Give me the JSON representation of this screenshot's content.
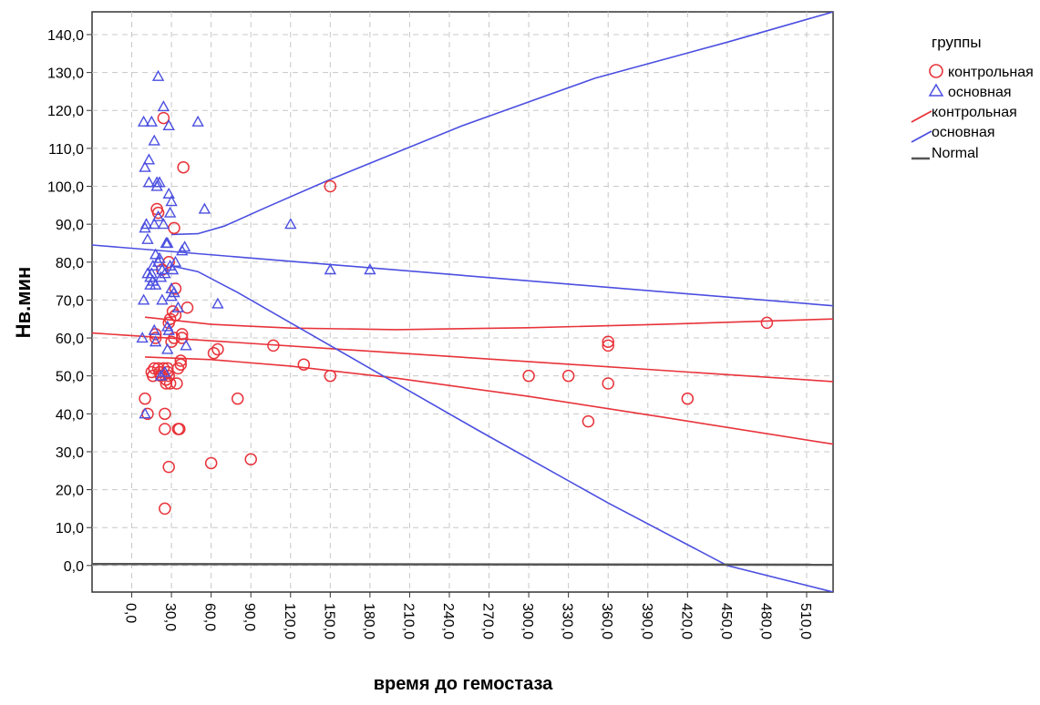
{
  "chart_data": {
    "type": "scatter",
    "xlabel": "время до гемостаза",
    "ylabel": "Нв.мин",
    "xlim": [
      -30,
      530
    ],
    "ylim": [
      -7,
      146
    ],
    "x_ticks": [
      0,
      30,
      60,
      90,
      120,
      150,
      180,
      210,
      240,
      270,
      300,
      330,
      360,
      390,
      420,
      450,
      480,
      510
    ],
    "x_tick_labels": [
      "0,0",
      "30,0",
      "60,0",
      "90,0",
      "120,0",
      "150,0",
      "180,0",
      "210,0",
      "240,0",
      "270,0",
      "300,0",
      "330,0",
      "360,0",
      "390,0",
      "420,0",
      "450,0",
      "480,0",
      "510,0"
    ],
    "y_ticks": [
      0,
      10,
      20,
      30,
      40,
      50,
      60,
      70,
      80,
      90,
      100,
      110,
      120,
      130,
      140
    ],
    "y_tick_labels": [
      "0,0",
      "10,0",
      "20,0",
      "30,0",
      "40,0",
      "50,0",
      "60,0",
      "70,0",
      "80,0",
      "90,0",
      "100,0",
      "110,0",
      "120,0",
      "130,0",
      "140,0"
    ],
    "grid": true,
    "legend_position": "right",
    "legend": {
      "title": "группы",
      "items": [
        {
          "label": "контрольная",
          "kind": "circle",
          "color": "#e8333a"
        },
        {
          "label": "основная",
          "kind": "triangle",
          "color": "#4b4fe0"
        },
        {
          "label": "контрольная",
          "kind": "line",
          "color": "#e8333a"
        },
        {
          "label": "основная",
          "kind": "line",
          "color": "#4b4fe0"
        },
        {
          "label": "Normal",
          "kind": "line",
          "color": "#555555"
        }
      ]
    },
    "colors": {
      "control": "#e8333a",
      "main": "#4b4fe0",
      "normal": "#555555"
    },
    "series": [
      {
        "name": "контрольная",
        "marker": "circle",
        "points": [
          [
            10,
            44
          ],
          [
            12,
            40
          ],
          [
            15,
            51
          ],
          [
            16,
            50
          ],
          [
            17,
            52
          ],
          [
            18,
            61
          ],
          [
            18,
            60
          ],
          [
            19,
            94
          ],
          [
            20,
            93
          ],
          [
            20,
            52
          ],
          [
            21,
            51
          ],
          [
            22,
            50
          ],
          [
            23,
            78
          ],
          [
            24,
            118
          ],
          [
            24,
            52
          ],
          [
            25,
            36
          ],
          [
            25,
            40
          ],
          [
            25,
            15
          ],
          [
            26,
            49
          ],
          [
            26,
            48
          ],
          [
            27,
            51
          ],
          [
            27,
            52
          ],
          [
            28,
            50
          ],
          [
            28,
            64
          ],
          [
            28,
            26
          ],
          [
            28,
            80
          ],
          [
            29,
            48
          ],
          [
            29,
            65
          ],
          [
            30,
            59
          ],
          [
            31,
            67
          ],
          [
            32,
            60
          ],
          [
            32,
            89
          ],
          [
            33,
            66
          ],
          [
            33,
            73
          ],
          [
            34,
            48
          ],
          [
            35,
            36
          ],
          [
            35,
            52
          ],
          [
            36,
            36
          ],
          [
            37,
            53
          ],
          [
            37,
            54
          ],
          [
            38,
            60
          ],
          [
            38,
            61
          ],
          [
            39,
            105
          ],
          [
            42,
            68
          ],
          [
            60,
            27
          ],
          [
            62,
            56
          ],
          [
            65,
            57
          ],
          [
            80,
            44
          ],
          [
            90,
            28
          ],
          [
            107,
            58
          ],
          [
            130,
            53
          ],
          [
            150,
            100
          ],
          [
            150,
            50
          ],
          [
            300,
            50
          ],
          [
            330,
            50
          ],
          [
            345,
            38
          ],
          [
            360,
            59
          ],
          [
            360,
            58
          ],
          [
            360,
            48
          ],
          [
            420,
            44
          ],
          [
            480,
            64
          ]
        ]
      },
      {
        "name": "основная",
        "marker": "triangle",
        "points": [
          [
            8,
            60
          ],
          [
            9,
            70
          ],
          [
            9,
            117
          ],
          [
            10,
            89
          ],
          [
            10,
            105
          ],
          [
            10,
            40
          ],
          [
            11,
            90
          ],
          [
            12,
            86
          ],
          [
            12,
            77
          ],
          [
            13,
            107
          ],
          [
            13,
            101
          ],
          [
            14,
            74
          ],
          [
            14,
            76
          ],
          [
            15,
            117
          ],
          [
            15,
            77
          ],
          [
            16,
            75
          ],
          [
            16,
            79
          ],
          [
            17,
            62
          ],
          [
            17,
            112
          ],
          [
            17,
            90
          ],
          [
            18,
            59
          ],
          [
            18,
            74
          ],
          [
            18,
            82
          ],
          [
            19,
            101
          ],
          [
            19,
            100
          ],
          [
            20,
            129
          ],
          [
            20,
            92
          ],
          [
            20,
            80
          ],
          [
            21,
            81
          ],
          [
            21,
            101
          ],
          [
            22,
            76
          ],
          [
            22,
            50
          ],
          [
            23,
            78
          ],
          [
            23,
            70
          ],
          [
            24,
            121
          ],
          [
            24,
            90
          ],
          [
            25,
            77
          ],
          [
            25,
            51
          ],
          [
            26,
            85
          ],
          [
            27,
            85
          ],
          [
            27,
            63
          ],
          [
            27,
            57
          ],
          [
            28,
            98
          ],
          [
            28,
            116
          ],
          [
            28,
            62
          ],
          [
            29,
            93
          ],
          [
            29,
            79
          ],
          [
            30,
            73
          ],
          [
            30,
            96
          ],
          [
            30,
            71
          ],
          [
            31,
            78
          ],
          [
            32,
            72
          ],
          [
            33,
            80
          ],
          [
            35,
            68
          ],
          [
            38,
            83
          ],
          [
            40,
            84
          ],
          [
            41,
            58
          ],
          [
            50,
            117
          ],
          [
            55,
            94
          ],
          [
            65,
            69
          ],
          [
            120,
            90
          ],
          [
            150,
            78
          ],
          [
            180,
            78
          ]
        ]
      }
    ],
    "fits": [
      {
        "name": "контрольная",
        "kind": "fit",
        "points": [
          [
            -30,
            61.3
          ],
          [
            530,
            48.5
          ]
        ]
      },
      {
        "name": "контрольная",
        "kind": "ci_upper",
        "points": [
          [
            10,
            65.5
          ],
          [
            60,
            63.6
          ],
          [
            120,
            62.6
          ],
          [
            200,
            62.2
          ],
          [
            300,
            62.7
          ],
          [
            400,
            63.6
          ],
          [
            530,
            65
          ]
        ]
      },
      {
        "name": "контрольная",
        "kind": "ci_lower",
        "points": [
          [
            10,
            55
          ],
          [
            60,
            54.3
          ],
          [
            120,
            52.6
          ],
          [
            200,
            49.4
          ],
          [
            300,
            44.6
          ],
          [
            400,
            39.2
          ],
          [
            530,
            32
          ]
        ]
      },
      {
        "name": "основная",
        "kind": "fit",
        "points": [
          [
            -30,
            84.5
          ],
          [
            530,
            68.5
          ]
        ]
      },
      {
        "name": "основная",
        "kind": "ci_upper",
        "points": [
          [
            30,
            87.3
          ],
          [
            50,
            87.5
          ],
          [
            70,
            89.5
          ],
          [
            100,
            94.2
          ],
          [
            150,
            101.8
          ],
          [
            250,
            116
          ],
          [
            350,
            128.5
          ],
          [
            450,
            138
          ],
          [
            530,
            146
          ]
        ]
      },
      {
        "name": "основная",
        "kind": "ci_lower",
        "points": [
          [
            30,
            79
          ],
          [
            50,
            77.5
          ],
          [
            80,
            72
          ],
          [
            120,
            64
          ],
          [
            180,
            52
          ],
          [
            260,
            36
          ],
          [
            360,
            16.5
          ],
          [
            450,
            0
          ],
          [
            530,
            -7
          ]
        ]
      },
      {
        "name": "Normal",
        "kind": "normal",
        "points": [
          [
            -30,
            0.4
          ],
          [
            530,
            0.2
          ]
        ]
      }
    ]
  }
}
